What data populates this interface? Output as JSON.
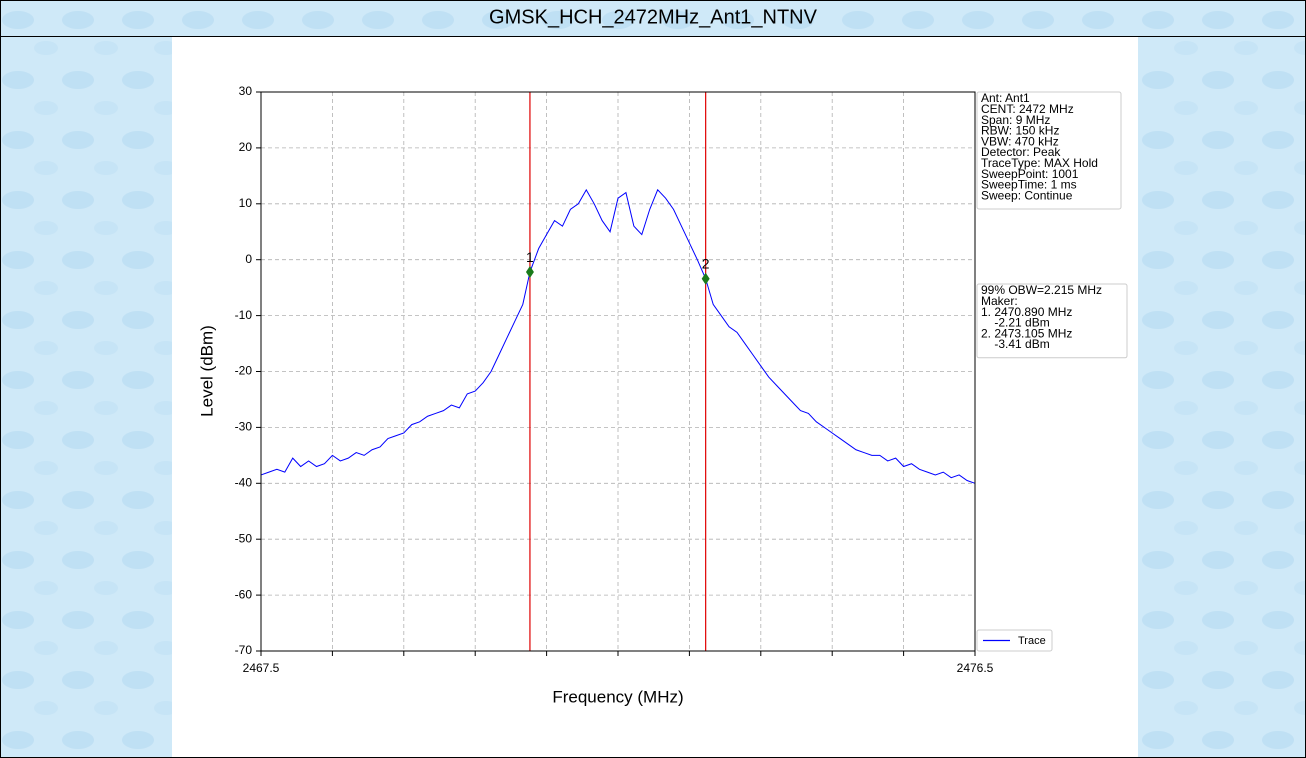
{
  "chart_data": {
    "type": "line",
    "title": "GMSK_HCH_2472MHz_Ant1_NTNV",
    "xlabel": "Frequency (MHz)",
    "ylabel": "Level (dBm)",
    "x": [
      2467.5,
      2467.6,
      2467.7,
      2467.8,
      2467.9,
      2468.0,
      2468.1,
      2468.2,
      2468.3,
      2468.4,
      2468.5,
      2468.6,
      2468.7,
      2468.8,
      2468.9,
      2469.0,
      2469.1,
      2469.2,
      2469.3,
      2469.4,
      2469.5,
      2469.6,
      2469.7,
      2469.8,
      2469.9,
      2470.0,
      2470.1,
      2470.2,
      2470.3,
      2470.4,
      2470.5,
      2470.6,
      2470.7,
      2470.8,
      2470.89,
      2471.0,
      2471.1,
      2471.2,
      2471.3,
      2471.4,
      2471.5,
      2471.6,
      2471.7,
      2471.8,
      2471.9,
      2472.0,
      2472.1,
      2472.2,
      2472.3,
      2472.4,
      2472.5,
      2472.6,
      2472.7,
      2472.8,
      2472.9,
      2473.0,
      2473.105,
      2473.2,
      2473.3,
      2473.4,
      2473.5,
      2473.6,
      2473.7,
      2473.8,
      2473.9,
      2474.0,
      2474.1,
      2474.2,
      2474.3,
      2474.4,
      2474.5,
      2474.6,
      2474.7,
      2474.8,
      2474.9,
      2475.0,
      2475.1,
      2475.2,
      2475.3,
      2475.4,
      2475.5,
      2475.6,
      2475.7,
      2475.8,
      2475.9,
      2476.0,
      2476.1,
      2476.2,
      2476.3,
      2476.4,
      2476.5
    ],
    "series": [
      {
        "name": "Trace",
        "color": "#0000ff",
        "values": [
          -38.5,
          -38,
          -37.5,
          -38,
          -35.5,
          -37,
          -36,
          -37,
          -36.5,
          -35,
          -36,
          -35.5,
          -34.5,
          -35,
          -34,
          -33.5,
          -32,
          -31.5,
          -31,
          -29.5,
          -29,
          -28,
          -27.5,
          -27,
          -26,
          -26.5,
          -24,
          -23.5,
          -22,
          -20,
          -17,
          -14,
          -11,
          -8,
          -2.21,
          2,
          4.5,
          7,
          6,
          9,
          10,
          12.5,
          10,
          7,
          5,
          11,
          12,
          6,
          4.5,
          9,
          12.5,
          11,
          9,
          6,
          3,
          0,
          -3.41,
          -8,
          -10,
          -12,
          -13,
          -15,
          -17,
          -19,
          -21,
          -22.5,
          -24,
          -25.5,
          -27,
          -27.5,
          -29,
          -30,
          -31,
          -32,
          -33,
          -34,
          -34.5,
          -35,
          -35,
          -36,
          -35.5,
          -37,
          -36.5,
          -37.5,
          -38,
          -38.5,
          -38,
          -39,
          -38.5,
          -39.5,
          -40
        ]
      }
    ],
    "xlim": [
      2467.5,
      2476.5
    ],
    "ylim": [
      -70,
      30
    ],
    "xticks": [
      2467.5,
      {
        "value": 2468.4,
        "label": null
      },
      {
        "value": 2469.3,
        "label": null
      },
      {
        "value": 2470.2,
        "label": null
      },
      {
        "value": 2471.1,
        "label": null
      },
      {
        "value": 2472.0,
        "label": null
      },
      {
        "value": 2472.9,
        "label": null
      },
      {
        "value": 2473.8,
        "label": null
      },
      {
        "value": 2474.7,
        "label": null
      },
      {
        "value": 2475.6,
        "label": null
      },
      2476.5
    ],
    "yticks": [
      30,
      20,
      10,
      0,
      -10,
      -20,
      -30,
      -40,
      -50,
      -60,
      -70
    ],
    "grid": true,
    "markers": [
      {
        "label": "1",
        "x": 2470.89,
        "y": -2.21,
        "color": "#1a7a1a",
        "line_color": "#e00000"
      },
      {
        "label": "2",
        "x": 2473.105,
        "y": -3.41,
        "color": "#1a7a1a",
        "line_color": "#e00000"
      }
    ],
    "info_boxes": [
      [
        "Ant: Ant1",
        "CENT: 2472 MHz",
        "Span: 9 MHz",
        "RBW: 150 kHz",
        "VBW: 470 kHz",
        "Detector: Peak",
        "TraceType: MAX Hold",
        "SweepPoint: 1001",
        "SweepTime: 1 ms",
        "Sweep: Continue"
      ],
      [
        "99% OBW=2.215 MHz",
        "Maker:",
        "1. 2470.890 MHz",
        "    -2.21 dBm",
        "2. 2473.105 MHz",
        "    -3.41 dBm"
      ]
    ],
    "legend": "lower right"
  }
}
